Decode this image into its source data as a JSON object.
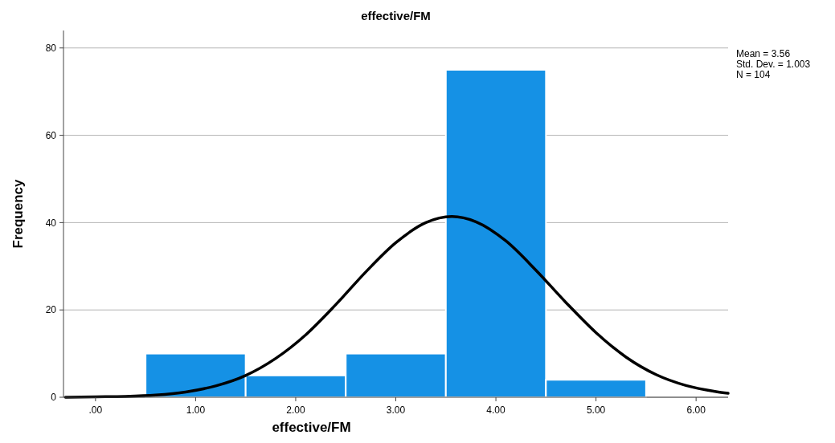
{
  "chart_data": {
    "type": "histogram",
    "title": "effective/FM",
    "xlabel": "effective/FM",
    "ylabel": "Frequency",
    "bins": [
      0.5,
      1.5,
      2.5,
      3.5,
      4.5,
      5.5
    ],
    "values": [
      10,
      5,
      10,
      75,
      4
    ],
    "color": "#1591e5",
    "series": [
      {
        "type": "line",
        "color": "#000000",
        "x": [
          -0.3,
          0,
          0.3,
          0.6,
          0.9,
          1.2,
          1.5,
          1.8,
          2.1,
          2.4,
          2.7,
          3.0,
          3.3,
          3.56,
          3.8,
          4.1,
          4.4,
          4.7,
          5.0,
          5.3,
          5.6,
          5.9,
          6.2,
          6.32
        ],
        "values": [
          0,
          0.1,
          0.2,
          0.5,
          1.2,
          2.6,
          5,
          8.9,
          14.3,
          21.2,
          28.7,
          35.4,
          40,
          41.4,
          40.2,
          35.8,
          29.1,
          21.7,
          14.8,
          9.2,
          5.2,
          2.7,
          1.3,
          0.9
        ]
      }
    ],
    "xlim": [
      -0.32,
      6.32
    ],
    "ylim": [
      0,
      84
    ],
    "xticks": [
      {
        "value": 0,
        "label": ".00"
      },
      {
        "value": 1,
        "label": "1.00"
      },
      {
        "value": 2,
        "label": "2.00"
      },
      {
        "value": 3,
        "label": "3.00"
      },
      {
        "value": 4,
        "label": "4.00"
      },
      {
        "value": 5,
        "label": "5.00"
      },
      {
        "value": 6,
        "label": "6.00"
      }
    ],
    "yticks": [
      0,
      20,
      40,
      60,
      80
    ],
    "grid": "y",
    "annotations": [
      "Mean = 3.56",
      "Std. Dev. = 1.003",
      "N = 104"
    ]
  }
}
